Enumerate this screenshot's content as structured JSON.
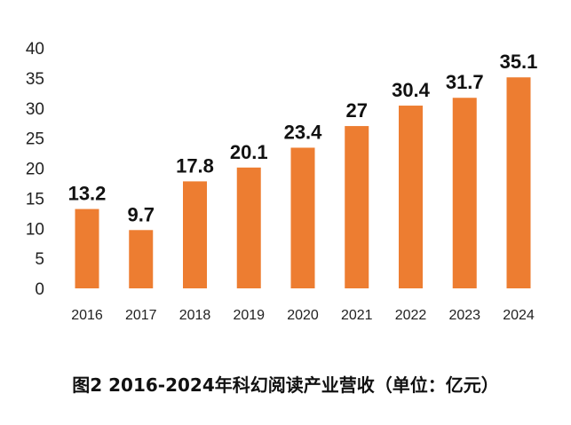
{
  "chart_data": {
    "type": "bar",
    "title": "图2 2016-2024年科幻阅读产业营收（单位：亿元）",
    "categories": [
      "2016",
      "2017",
      "2018",
      "2019",
      "2020",
      "2021",
      "2022",
      "2023",
      "2024"
    ],
    "values": [
      13.2,
      9.7,
      17.8,
      20.1,
      23.4,
      27,
      30.4,
      31.7,
      35.1
    ],
    "data_labels": [
      "13.2",
      "9.7",
      "17.8",
      "20.1",
      "23.4",
      "27",
      "30.4",
      "31.7",
      "35.1"
    ],
    "ylim": [
      0,
      40
    ],
    "yticks": [
      0,
      5,
      10,
      15,
      20,
      25,
      30,
      35,
      40
    ],
    "grid": false,
    "legend": "none",
    "bar_color": "#ED7D31"
  }
}
